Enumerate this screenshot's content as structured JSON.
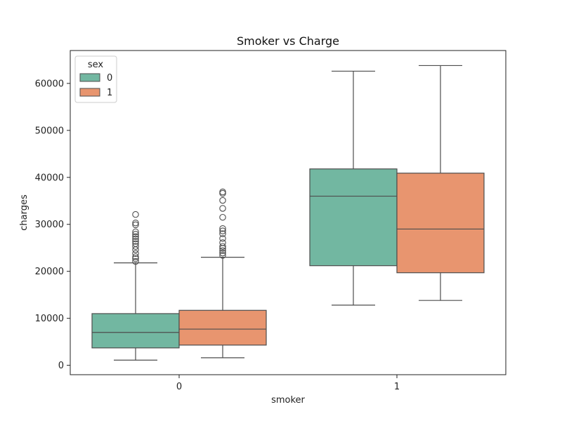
{
  "chart_data": {
    "type": "box",
    "title": "Smoker vs Charge",
    "xlabel": "smoker",
    "ylabel": "charges",
    "categories": [
      "0",
      "1"
    ],
    "ylim": [
      -2000,
      67000
    ],
    "yticks": [
      0,
      10000,
      20000,
      30000,
      40000,
      50000,
      60000
    ],
    "ytick_labels": [
      "0",
      "10000",
      "20000",
      "30000",
      "40000",
      "50000",
      "60000"
    ],
    "legend": {
      "title": "sex",
      "position": "top-left"
    },
    "grid": false,
    "series": [
      {
        "name": "0",
        "color": "#72b7a1",
        "boxes": [
          {
            "category": "0",
            "whisker_low": 1100,
            "q1": 3700,
            "median": 7000,
            "q3": 11000,
            "whisker_high": 21800,
            "outliers": [
              22100,
              22700,
              23100,
              23800,
              24600,
              25300,
              25900,
              26400,
              26900,
              27400,
              27900,
              28400,
              29900,
              30300,
              32100
            ]
          },
          {
            "category": "1",
            "whisker_low": 12800,
            "q1": 21200,
            "median": 36000,
            "q3": 41800,
            "whisker_high": 62600,
            "outliers": []
          }
        ]
      },
      {
        "name": "1",
        "color": "#e8956f",
        "boxes": [
          {
            "category": "0",
            "whisker_low": 1600,
            "q1": 4300,
            "median": 7700,
            "q3": 11700,
            "whisker_high": 23000,
            "outliers": [
              23400,
              23900,
              24400,
              24900,
              25300,
              26100,
              27000,
              28000,
              28600,
              29100,
              31500,
              33400,
              35100,
              36600,
              36900
            ]
          },
          {
            "category": "1",
            "whisker_low": 13800,
            "q1": 19700,
            "median": 29000,
            "q3": 40900,
            "whisker_high": 63800,
            "outliers": []
          }
        ]
      }
    ]
  }
}
